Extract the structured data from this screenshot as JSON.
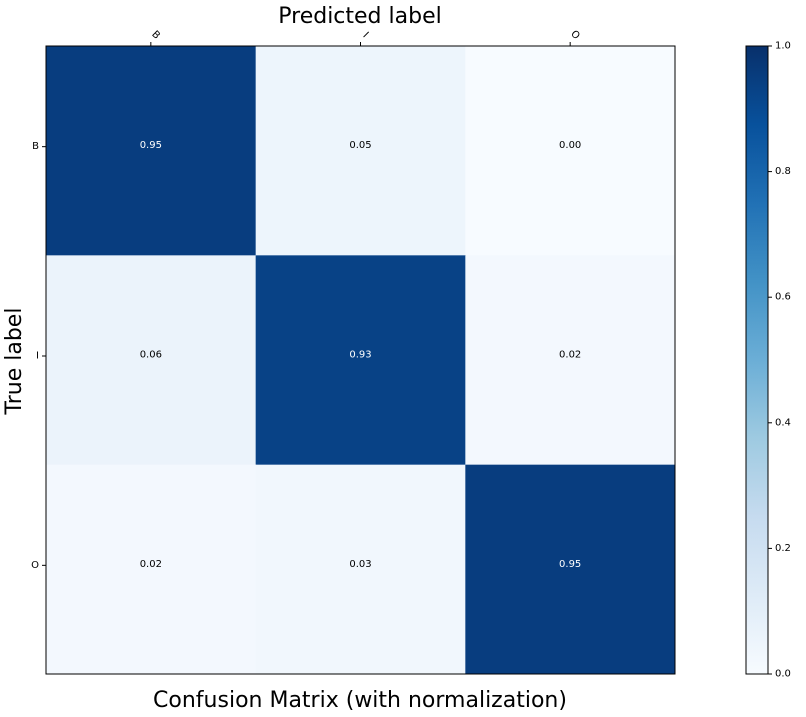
{
  "chart_data": {
    "type": "heatmap",
    "title": "Confusion Matrix (with normalization)",
    "xlabel": "Predicted label",
    "ylabel": "True label",
    "x_categories": [
      "B",
      "I",
      "O"
    ],
    "y_categories": [
      "B",
      "I",
      "O"
    ],
    "values": [
      [
        0.95,
        0.05,
        0.0
      ],
      [
        0.06,
        0.93,
        0.02
      ],
      [
        0.02,
        0.03,
        0.95
      ]
    ],
    "value_labels": [
      [
        "0.95",
        "0.05",
        "0.00"
      ],
      [
        "0.06",
        "0.93",
        "0.02"
      ],
      [
        "0.02",
        "0.03",
        "0.95"
      ]
    ],
    "colormap": "Blues",
    "colormap_stops": [
      "#f7fbff",
      "#deebf7",
      "#c6dbef",
      "#9ecae1",
      "#6baed6",
      "#4292c6",
      "#2171b5",
      "#08519c",
      "#08306b"
    ],
    "colorbar": {
      "range": [
        0.0,
        1.0
      ],
      "ticks": [
        0.0,
        0.2,
        0.4,
        0.6,
        0.8,
        1.0
      ],
      "tick_labels": [
        "0.0",
        "0.2",
        "0.4",
        "0.6",
        "0.8",
        "1.0"
      ]
    },
    "text_color_dark": "#000000",
    "text_color_light": "#ffffff",
    "grid": false
  }
}
